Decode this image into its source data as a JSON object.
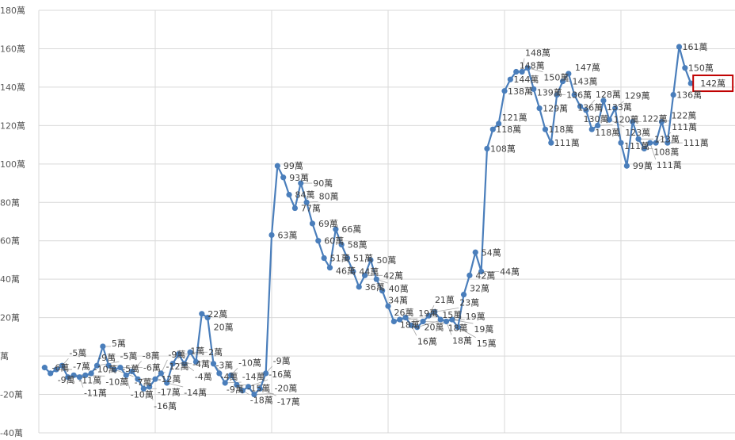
{
  "chart_data": {
    "type": "line",
    "title": "",
    "xlabel": "",
    "ylabel": "",
    "ylim": [
      -40,
      180
    ],
    "y_ticks": [
      180,
      160,
      140,
      120,
      100,
      80,
      60,
      40,
      20,
      0,
      -20,
      -40
    ],
    "y_tick_labels": [
      "180萬",
      "160萬",
      "140萬",
      "120萬",
      "100萬",
      "80萬",
      "60萬",
      "40萬",
      "20萬",
      "萬",
      "-20萬",
      "-40萬"
    ],
    "grid": true,
    "legend": "none",
    "data_label_suffix": "萬",
    "series": [
      {
        "color": "#4A7EBB",
        "values": [
          -6,
          -9,
          -7,
          -5,
          -11,
          -10,
          -11,
          -10,
          -9,
          -5,
          5,
          -5,
          -7,
          -6,
          -10,
          -8,
          -12,
          -17,
          -16,
          -12,
          -9,
          -14,
          -4,
          1,
          -4,
          2,
          -3,
          22,
          20,
          -4,
          -9,
          -14,
          -10,
          -15,
          -18,
          -16,
          -20,
          -17,
          -9,
          63,
          99,
          93,
          84,
          77,
          90,
          80,
          69,
          60,
          51,
          46,
          66,
          58,
          51,
          44,
          36,
          42,
          50,
          40,
          34,
          26,
          18,
          19,
          20,
          16,
          15,
          18,
          21,
          23,
          19,
          18,
          19,
          15,
          32,
          42,
          54,
          44,
          108,
          118,
          121,
          138,
          144,
          148,
          148,
          150,
          139,
          129,
          118,
          111,
          136,
          143,
          147,
          136,
          130,
          128,
          118,
          120,
          133,
          123,
          129,
          111,
          99,
          122,
          113,
          108,
          111,
          111,
          122,
          111,
          136,
          161,
          150,
          142
        ]
      }
    ],
    "highlighted_label": {
      "value": 142,
      "border_color": "#C00000"
    }
  }
}
